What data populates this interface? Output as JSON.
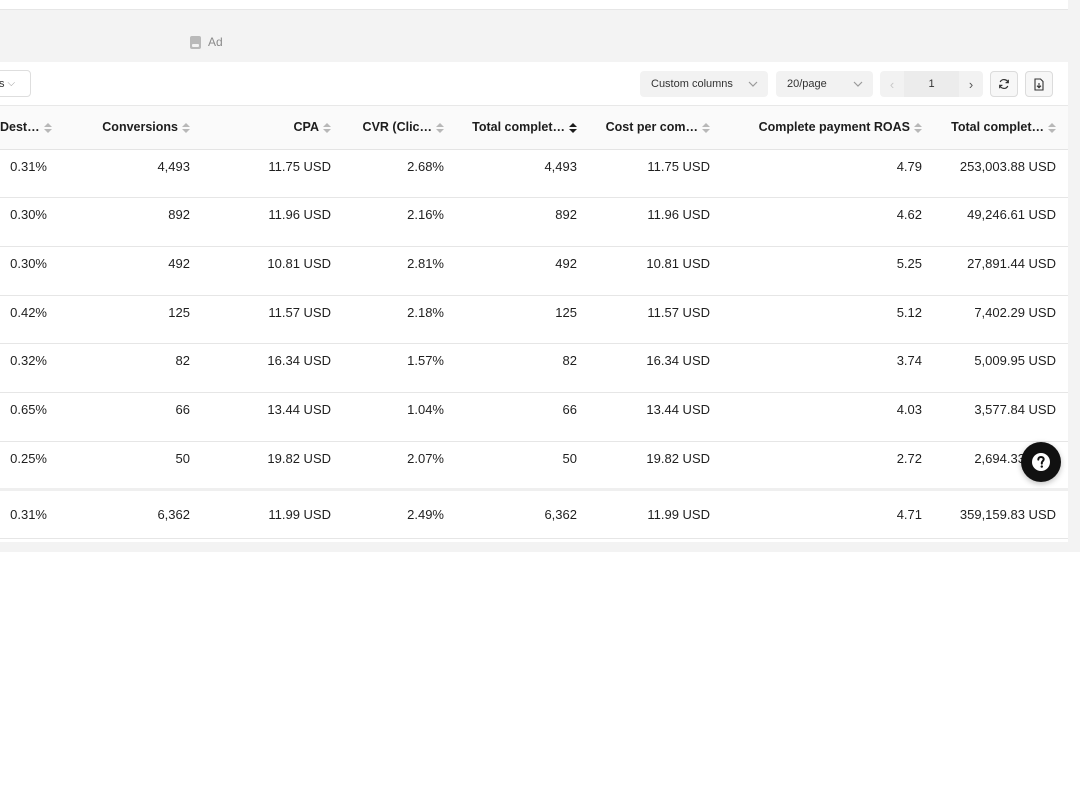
{
  "level_tab": {
    "label": "Ad",
    "icon": "ad-icon"
  },
  "toolbar": {
    "left_select_label": "s",
    "custom_columns_label": "Custom columns",
    "page_size_label": "20/page",
    "current_page": "1",
    "icons": [
      "chevron-left-icon",
      "chevron-right-icon",
      "refresh-icon",
      "export-icon",
      "chevron-down-icon"
    ]
  },
  "table": {
    "headers": [
      "Dest…",
      "Conversions",
      "CPA",
      "CVR (Clic…",
      "Total complet…",
      "Cost per com…",
      "Complete payment ROAS",
      "Total complet…"
    ],
    "sorted_column": "Total complet…",
    "rows": [
      [
        "0.31%",
        "4,493",
        "11.75 USD",
        "2.68%",
        "4,493",
        "11.75 USD",
        "4.79",
        "253,003.88 USD"
      ],
      [
        "0.30%",
        "892",
        "11.96 USD",
        "2.16%",
        "892",
        "11.96 USD",
        "4.62",
        "49,246.61 USD"
      ],
      [
        "0.30%",
        "492",
        "10.81 USD",
        "2.81%",
        "492",
        "10.81 USD",
        "5.25",
        "27,891.44 USD"
      ],
      [
        "0.42%",
        "125",
        "11.57 USD",
        "2.18%",
        "125",
        "11.57 USD",
        "5.12",
        "7,402.29 USD"
      ],
      [
        "0.32%",
        "82",
        "16.34 USD",
        "1.57%",
        "82",
        "16.34 USD",
        "3.74",
        "5,009.95 USD"
      ],
      [
        "0.65%",
        "66",
        "13.44 USD",
        "1.04%",
        "66",
        "13.44 USD",
        "4.03",
        "3,577.84 USD"
      ],
      [
        "0.25%",
        "50",
        "19.82 USD",
        "2.07%",
        "50",
        "19.82 USD",
        "2.72",
        "2,694.33 USD"
      ]
    ],
    "total": [
      "0.31%",
      "6,362",
      "11.99 USD",
      "2.49%",
      "6,362",
      "11.99 USD",
      "4.71",
      "359,159.83 USD"
    ]
  },
  "help_button": {
    "icon": "question-icon",
    "color": "#111111"
  }
}
